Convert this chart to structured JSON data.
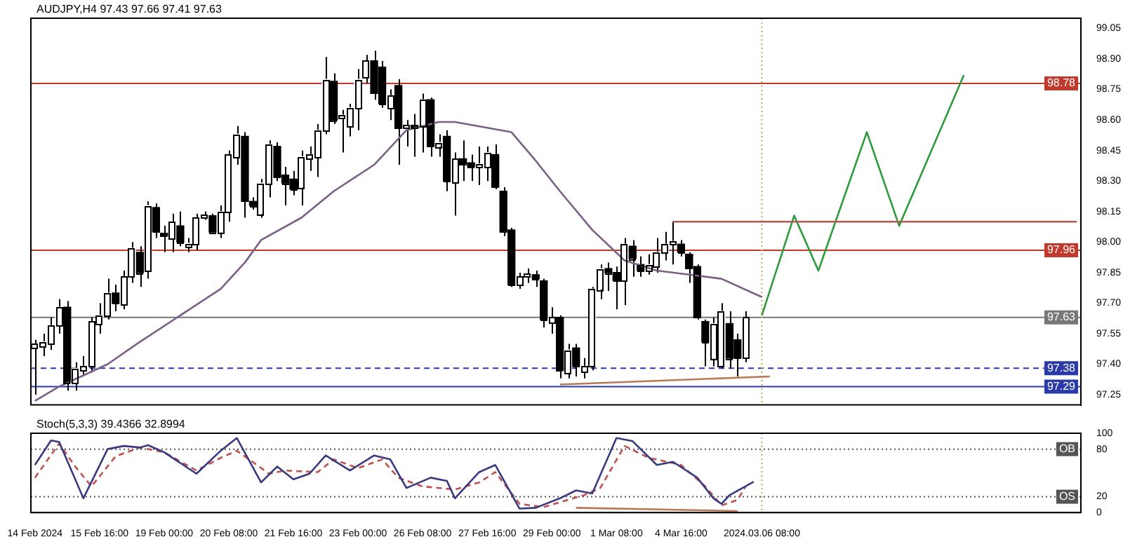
{
  "chart_data": [
    {
      "type": "candlestick",
      "title": "AUDJPY,H4 97.43 97.66 97.41 97.63",
      "color": "#000000",
      "colors": [
        "#ffffff",
        "#ffffff",
        "#ffffff",
        "#ffffff",
        "#000000",
        "#ffffff",
        "#ffffff",
        "#ffffff",
        "#ffffff",
        "#ffffff",
        "#000000",
        "#ffffff",
        "#ffffff",
        "#000000",
        "#ffffff",
        "#000000",
        "#000000",
        "#ffffff",
        "#000000",
        "#ffffff",
        "#ffffff",
        "#ffffff",
        "#000000",
        "#ffffff",
        "#ffffff",
        "#ffffff",
        "#000000",
        "#000000",
        "#ffffff",
        "#ffffff",
        "#000000",
        "#000000",
        "#000000",
        "#ffffff",
        "#ffffff",
        "#ffffff",
        "#ffffff",
        "#000000",
        "#ffffff",
        "#ffffff",
        "#ffffff",
        "#ffffff",
        "#000000",
        "#000000",
        "#ffffff",
        "#000000",
        "#ffffff",
        "#000000",
        "#ffffff",
        "#000000",
        "#ffffff",
        "#000000",
        "#ffffff",
        "#000000",
        "#000000",
        "#ffffff",
        "#ffffff",
        "#000000",
        "#000000",
        "#000000",
        "#ffffff",
        "#ffffff",
        "#000000",
        "#000000",
        "#ffffff",
        "#000000",
        "#ffffff",
        "#000000",
        "#ffffff",
        "#ffffff",
        "#ffffff",
        "#000000",
        "#000000",
        "#ffffff",
        "#000000",
        "#000000",
        "#ffffff",
        "#ffffff",
        "#ffffff",
        "#ffffff",
        "#000000",
        "#000000",
        "#000000",
        "#000000",
        "#ffffff",
        "#ffffff",
        "#000000",
        "#000000",
        "#ffffff",
        null,
        null,
        null,
        null,
        null,
        null,
        null,
        null,
        null,
        null,
        null,
        null,
        null,
        null,
        null,
        null,
        null,
        null,
        null,
        null,
        null,
        null,
        null,
        null,
        null,
        null,
        null,
        null,
        null,
        null,
        null,
        null,
        null,
        null,
        null,
        null,
        null,
        null,
        null,
        null,
        null
      ],
      "categories": [
        "14 Feb 2024",
        null,
        null,
        null,
        null,
        null,
        null,
        null,
        "15 Feb 16:00",
        null,
        null,
        null,
        null,
        null,
        null,
        null,
        "19 Feb 00:00",
        null,
        null,
        null,
        null,
        null,
        null,
        null,
        "20 Feb 08:00",
        null,
        null,
        null,
        null,
        null,
        null,
        null,
        "21 Feb 16:00",
        null,
        null,
        null,
        null,
        null,
        null,
        null,
        "23 Feb 00:00",
        null,
        null,
        null,
        null,
        null,
        null,
        null,
        "26 Feb 08:00",
        null,
        null,
        null,
        null,
        null,
        null,
        null,
        "27 Feb 16:00",
        null,
        null,
        null,
        null,
        null,
        null,
        null,
        "29 Feb 00:00",
        null,
        null,
        null,
        null,
        null,
        null,
        null,
        "1 Mar 08:00",
        null,
        null,
        null,
        null,
        null,
        null,
        null,
        "4 Mar 16:00",
        null,
        null,
        null,
        null,
        null,
        null,
        null,
        null,
        null,
        "2024.03.06 08:00",
        null,
        null,
        null,
        null,
        null,
        null,
        null,
        null,
        null,
        null,
        null,
        null,
        null,
        null,
        null,
        null,
        null,
        null,
        null,
        null,
        null,
        null,
        null,
        null,
        null,
        null,
        null,
        null,
        null,
        null,
        null,
        null,
        null,
        null,
        null,
        null,
        null,
        null,
        null
      ],
      "ohlc": [
        [
          97.48,
          97.52,
          97.25,
          97.5
        ],
        [
          97.49,
          97.55,
          97.44,
          97.51
        ],
        [
          97.5,
          97.63,
          97.47,
          97.59
        ],
        [
          97.59,
          97.72,
          97.55,
          97.68
        ],
        [
          97.68,
          97.71,
          97.27,
          97.31
        ],
        [
          97.31,
          97.41,
          97.27,
          97.38
        ],
        [
          97.37,
          97.44,
          97.34,
          97.39
        ],
        [
          97.39,
          97.63,
          97.36,
          97.61
        ],
        [
          97.6,
          97.7,
          97.55,
          97.64
        ],
        [
          97.64,
          97.82,
          97.62,
          97.75
        ],
        [
          97.75,
          97.79,
          97.66,
          97.7
        ],
        [
          97.69,
          97.86,
          97.67,
          97.83
        ],
        [
          97.83,
          98.0,
          97.8,
          97.97
        ],
        [
          97.95,
          97.98,
          97.78,
          97.85
        ],
        [
          97.86,
          98.2,
          97.82,
          98.18
        ],
        [
          98.17,
          98.19,
          98.02,
          98.05
        ],
        [
          98.04,
          98.08,
          97.95,
          98.03
        ],
        [
          98.02,
          98.14,
          97.95,
          98.1
        ],
        [
          98.08,
          98.15,
          97.98,
          98.0
        ],
        [
          97.98,
          98.02,
          97.95,
          97.99
        ],
        [
          97.99,
          98.14,
          97.96,
          98.12
        ],
        [
          98.12,
          98.15,
          98.11,
          98.13
        ],
        [
          98.13,
          98.14,
          98.04,
          98.05
        ],
        [
          98.05,
          98.18,
          98.02,
          98.15
        ],
        [
          98.15,
          98.45,
          98.1,
          98.43
        ],
        [
          98.42,
          98.57,
          98.38,
          98.53
        ],
        [
          98.52,
          98.54,
          98.12,
          98.2
        ],
        [
          98.2,
          98.22,
          98.16,
          98.18
        ],
        [
          98.14,
          98.31,
          98.12,
          98.29
        ],
        [
          98.29,
          98.5,
          98.22,
          98.48
        ],
        [
          98.47,
          98.49,
          98.3,
          98.32
        ],
        [
          98.33,
          98.37,
          98.18,
          98.29
        ],
        [
          98.31,
          98.35,
          98.23,
          98.26
        ],
        [
          98.27,
          98.45,
          98.18,
          98.42
        ],
        [
          98.41,
          98.47,
          98.35,
          98.43
        ],
        [
          98.42,
          98.58,
          98.32,
          98.55
        ],
        [
          98.55,
          98.91,
          98.53,
          98.8
        ],
        [
          98.79,
          98.83,
          98.58,
          98.6
        ],
        [
          98.61,
          98.65,
          98.44,
          98.62
        ],
        [
          98.57,
          98.68,
          98.52,
          98.66
        ],
        [
          98.66,
          98.85,
          98.55,
          98.8
        ],
        [
          98.81,
          98.92,
          98.78,
          98.89
        ],
        [
          98.89,
          98.94,
          98.7,
          98.73
        ],
        [
          98.86,
          98.89,
          98.66,
          98.68
        ],
        [
          98.66,
          98.75,
          98.6,
          98.72
        ],
        [
          98.77,
          98.8,
          98.38,
          98.56
        ],
        [
          98.56,
          98.6,
          98.47,
          98.57
        ],
        [
          98.57,
          98.63,
          98.42,
          98.56
        ],
        [
          98.57,
          98.73,
          98.44,
          98.7
        ],
        [
          98.7,
          98.71,
          98.42,
          98.47
        ],
        [
          98.47,
          98.53,
          98.42,
          98.49
        ],
        [
          98.52,
          98.55,
          98.25,
          98.3
        ],
        [
          98.29,
          98.44,
          98.13,
          98.41
        ],
        [
          98.41,
          98.5,
          98.3,
          98.38
        ],
        [
          98.39,
          98.43,
          98.3,
          98.37
        ],
        [
          98.37,
          98.47,
          98.28,
          98.38
        ],
        [
          98.37,
          98.47,
          98.3,
          98.44
        ],
        [
          98.43,
          98.48,
          98.26,
          98.27
        ],
        [
          98.25,
          98.27,
          98.03,
          98.05
        ],
        [
          98.06,
          98.07,
          97.78,
          97.79
        ],
        [
          97.79,
          97.85,
          97.77,
          97.83
        ],
        [
          97.83,
          97.87,
          97.8,
          97.84
        ],
        [
          97.84,
          97.86,
          97.78,
          97.82
        ],
        [
          97.81,
          97.82,
          97.58,
          97.62
        ],
        [
          97.6,
          97.68,
          97.55,
          97.63
        ],
        [
          97.63,
          97.64,
          97.33,
          97.37
        ],
        [
          97.36,
          97.5,
          97.33,
          97.47
        ],
        [
          97.48,
          97.5,
          97.34,
          97.39
        ],
        [
          97.36,
          97.43,
          97.33,
          97.39
        ],
        [
          97.39,
          97.78,
          97.37,
          97.77
        ],
        [
          97.77,
          97.89,
          97.72,
          97.87
        ],
        [
          97.87,
          97.9,
          97.76,
          97.85
        ],
        [
          97.85,
          97.88,
          97.67,
          97.81
        ],
        [
          97.81,
          98.02,
          97.69,
          97.99
        ],
        [
          97.98,
          98.01,
          97.83,
          97.92
        ],
        [
          97.89,
          97.93,
          97.83,
          97.86
        ],
        [
          97.86,
          97.94,
          97.84,
          97.89
        ],
        [
          97.88,
          98.02,
          97.85,
          97.95
        ],
        [
          97.95,
          98.05,
          97.91,
          97.99
        ],
        [
          97.99,
          98.1,
          97.89,
          98.0
        ],
        [
          97.99,
          98.01,
          97.93,
          97.95
        ],
        [
          97.94,
          97.95,
          97.8,
          97.87
        ],
        [
          97.88,
          97.89,
          97.62,
          97.63
        ],
        [
          97.61,
          97.62,
          97.39,
          97.51
        ],
        [
          97.43,
          97.63,
          97.39,
          97.6
        ],
        [
          97.39,
          97.7,
          97.38,
          97.66
        ],
        [
          97.6,
          97.66,
          97.38,
          97.43
        ],
        [
          97.52,
          97.55,
          97.34,
          97.43
        ],
        [
          97.43,
          97.66,
          97.41,
          97.63
        ],
        null,
        null,
        null,
        null,
        null,
        null,
        null,
        null,
        null,
        null,
        null,
        null,
        null,
        null,
        null,
        null,
        null,
        null,
        null,
        null,
        null,
        null,
        null,
        null,
        null,
        null,
        null,
        null,
        null,
        null,
        null,
        null,
        null,
        null,
        null,
        null,
        null,
        null,
        null,
        null,
        null
      ],
      "series": [
        {
          "type": "line",
          "color": "#7b5f86",
          "values": [
            97.22,
            null,
            null,
            97.29,
            null,
            null,
            null,
            null,
            null,
            97.4,
            null,
            null,
            null,
            97.51,
            null,
            null,
            null,
            null,
            97.64,
            null,
            null,
            null,
            null,
            97.77,
            null,
            null,
            97.9,
            null,
            98.01,
            null,
            null,
            null,
            null,
            98.12,
            null,
            null,
            null,
            98.25,
            null,
            null,
            null,
            null,
            98.38,
            null,
            null,
            null,
            98.55,
            null,
            null,
            null,
            98.59,
            null,
            98.59,
            null,
            null,
            null,
            null,
            null,
            null,
            98.54,
            null,
            null,
            98.4,
            null,
            null,
            98.25,
            null,
            null,
            null,
            98.06,
            null,
            null,
            null,
            97.91,
            null,
            null,
            null,
            97.86,
            null,
            null,
            null,
            97.84,
            null,
            null,
            null,
            97.82,
            null,
            null,
            null,
            null,
            97.73,
            null,
            null,
            null,
            null,
            null,
            null,
            null,
            null,
            null,
            null,
            null,
            null,
            null,
            null,
            null,
            null,
            null,
            null,
            null,
            null,
            null,
            null,
            null,
            null,
            null,
            null,
            null,
            null,
            null,
            null,
            null,
            null,
            null,
            null,
            null,
            null,
            null,
            null,
            null
          ]
        },
        {
          "type": "line",
          "color": "#b5584f",
          "values": [
            null,
            null,
            null,
            null,
            null,
            null,
            null,
            null,
            null,
            null,
            null,
            null,
            null,
            null,
            null,
            null,
            null,
            null,
            null,
            null,
            null,
            null,
            null,
            null,
            null,
            null,
            null,
            null,
            null,
            null,
            null,
            null,
            null,
            null,
            null,
            null,
            null,
            null,
            null,
            null,
            null,
            null,
            null,
            null,
            null,
            null,
            null,
            null,
            null,
            null,
            null,
            null,
            null,
            null,
            null,
            null,
            null,
            null,
            null,
            null,
            null,
            null,
            null,
            null,
            null,
            null,
            null,
            null,
            null,
            null,
            null,
            null,
            null,
            null,
            null,
            null,
            null,
            null,
            null,
            98.1,
            null,
            null,
            null,
            null,
            null,
            null,
            null,
            null,
            null,
            null,
            null,
            null,
            null,
            null,
            null,
            null,
            null,
            null,
            null,
            null,
            null,
            null,
            null,
            null,
            null,
            null,
            null,
            null,
            null,
            null,
            null,
            null,
            null,
            null,
            null,
            null,
            null,
            null,
            null,
            null,
            null,
            null,
            null,
            null,
            null,
            null,
            null,
            null,
            null,
            98.1
          ]
        },
        {
          "type": "line",
          "color": "#b87a56",
          "values": [
            null,
            null,
            null,
            null,
            null,
            null,
            null,
            null,
            null,
            null,
            null,
            null,
            null,
            null,
            null,
            null,
            null,
            null,
            null,
            null,
            null,
            null,
            null,
            null,
            null,
            null,
            null,
            null,
            null,
            null,
            null,
            null,
            null,
            null,
            null,
            null,
            null,
            null,
            null,
            null,
            null,
            null,
            null,
            null,
            null,
            null,
            null,
            null,
            null,
            null,
            null,
            null,
            null,
            null,
            null,
            null,
            null,
            null,
            null,
            null,
            null,
            null,
            null,
            null,
            null,
            97.3,
            null,
            null,
            null,
            null,
            null,
            null,
            null,
            null,
            null,
            null,
            null,
            null,
            null,
            null,
            null,
            null,
            null,
            null,
            null,
            null,
            null,
            null,
            null,
            null,
            null,
            97.34,
            null,
            null,
            null,
            null,
            null,
            null,
            null,
            null,
            null,
            null,
            null,
            null,
            null,
            null,
            null,
            null,
            null,
            null,
            null,
            null,
            null,
            null,
            null,
            null,
            null,
            null,
            null,
            null,
            null,
            null,
            null,
            null,
            null,
            null,
            null,
            null,
            null,
            null
          ]
        },
        {
          "type": "line",
          "color": "#2e9a3e",
          "values": [
            null,
            null,
            null,
            null,
            null,
            null,
            null,
            null,
            null,
            null,
            null,
            null,
            null,
            null,
            null,
            null,
            null,
            null,
            null,
            null,
            null,
            null,
            null,
            null,
            null,
            null,
            null,
            null,
            null,
            null,
            null,
            null,
            null,
            null,
            null,
            null,
            null,
            null,
            null,
            null,
            null,
            null,
            null,
            null,
            null,
            null,
            null,
            null,
            null,
            null,
            null,
            null,
            null,
            null,
            null,
            null,
            null,
            null,
            null,
            null,
            null,
            null,
            null,
            null,
            null,
            null,
            null,
            null,
            null,
            null,
            null,
            null,
            null,
            null,
            null,
            null,
            null,
            null,
            null,
            null,
            null,
            null,
            null,
            null,
            null,
            null,
            null,
            null,
            null,
            null,
            97.64,
            null,
            null,
            null,
            98.13,
            null,
            null,
            97.86,
            null,
            null,
            null,
            null,
            null,
            98.54,
            null,
            null,
            null,
            98.08,
            null,
            null,
            null,
            null,
            null,
            null,
            null,
            98.82,
            null,
            null,
            null,
            null,
            null,
            null,
            null,
            null,
            null,
            null,
            null,
            null,
            null,
            null
          ]
        }
      ],
      "ylim": [
        97.2,
        99.1
      ],
      "yticks": [
        97.25,
        {
          "value": 97.4,
          "label": "97.40"
        },
        97.55,
        {
          "value": 97.7,
          "label": "97.70"
        },
        97.85,
        {
          "value": 98,
          "label": "98.00"
        },
        98.15,
        {
          "value": 98.3,
          "label": "98.30"
        },
        98.45,
        {
          "value": 98.6,
          "label": "98.60"
        },
        98.75,
        {
          "value": 98.9,
          "label": "98.90"
        },
        99.05
      ],
      "tick_labels": "y",
      "ref_lines": [
        {
          "axis": "y",
          "value": 98.78,
          "label": "98.78",
          "color": "#c0392b"
        },
        {
          "axis": "y",
          "value": 97.96,
          "label": "97.96",
          "color": "#c0392b"
        },
        {
          "axis": "y",
          "value": 97.63,
          "label": "97.63",
          "color": "#777777"
        },
        {
          "axis": "y",
          "value": 97.38,
          "label": "97.38",
          "color": "#2a3aa8",
          "line_style": "dashed"
        },
        {
          "axis": "y",
          "value": 97.29,
          "label": "97.29",
          "color": "#2a3aa8"
        },
        {
          "axis": "x",
          "value": "2024.03.06 08:00",
          "color": "#c8a850",
          "line_style": "dotted"
        }
      ]
    },
    {
      "type": "line",
      "title": "Stoch(5,3,3) 39.4366 32.8994",
      "categories": [
        "14 Feb 2024",
        null,
        null,
        null,
        null,
        null,
        null,
        null,
        "15 Feb 16:00",
        null,
        null,
        null,
        null,
        null,
        null,
        null,
        "19 Feb 00:00",
        null,
        null,
        null,
        null,
        null,
        null,
        null,
        "20 Feb 08:00",
        null,
        null,
        null,
        null,
        null,
        null,
        null,
        "21 Feb 16:00",
        null,
        null,
        null,
        null,
        null,
        null,
        null,
        "23 Feb 00:00",
        null,
        null,
        null,
        null,
        null,
        null,
        null,
        "26 Feb 08:00",
        null,
        null,
        null,
        null,
        null,
        null,
        null,
        "27 Feb 16:00",
        null,
        null,
        null,
        null,
        null,
        null,
        null,
        "29 Feb 00:00",
        null,
        null,
        null,
        null,
        null,
        null,
        null,
        "1 Mar 08:00",
        null,
        null,
        null,
        null,
        null,
        null,
        null,
        "4 Mar 16:00",
        null,
        null,
        null,
        null,
        null,
        null,
        null,
        null,
        null,
        "2024.03.06 08:00",
        null,
        null,
        null,
        null,
        null,
        null,
        null,
        null,
        null,
        null,
        null,
        null,
        null,
        null,
        null,
        null,
        null,
        null,
        null,
        null,
        null,
        null,
        null,
        null,
        null,
        null,
        null,
        null,
        null,
        null,
        null,
        null,
        null,
        null,
        null,
        null,
        null,
        null,
        null
      ],
      "series": [
        {
          "color": "#3a3a80",
          "values": [
            60,
            null,
            91,
            89,
            null,
            null,
            18,
            null,
            null,
            80,
            null,
            84,
            null,
            82,
            85,
            null,
            76,
            null,
            null,
            null,
            49,
            null,
            null,
            78,
            null,
            94,
            null,
            null,
            38,
            null,
            58,
            null,
            42,
            null,
            49,
            null,
            72,
            null,
            null,
            53,
            null,
            null,
            72,
            null,
            67,
            null,
            31,
            null,
            null,
            44,
            null,
            40,
            18,
            null,
            null,
            51,
            null,
            60,
            null,
            null,
            5,
            null,
            6,
            null,
            null,
            18,
            null,
            28,
            null,
            24,
            null,
            null,
            94,
            null,
            90,
            null,
            null,
            60,
            null,
            64,
            null,
            null,
            44,
            null,
            18,
            11,
            22,
            null,
            null,
            39,
            null,
            null,
            null,
            null,
            null,
            null,
            null,
            null,
            null,
            null,
            null,
            null,
            null,
            null,
            null,
            null,
            null,
            null,
            null,
            null,
            null,
            null,
            null,
            null,
            null,
            null,
            null,
            null,
            null,
            null,
            null,
            null,
            null,
            null,
            null,
            null,
            null,
            null,
            null,
            null
          ]
        },
        {
          "color": "#c0504d",
          "line_style": "dashed",
          "values": [
            44,
            null,
            null,
            87,
            null,
            58,
            null,
            33,
            null,
            null,
            71,
            null,
            null,
            82,
            null,
            null,
            76,
            null,
            null,
            null,
            53,
            null,
            null,
            69,
            null,
            78,
            null,
            null,
            null,
            49,
            null,
            53,
            null,
            null,
            null,
            51,
            null,
            67,
            null,
            null,
            56,
            null,
            null,
            67,
            null,
            44,
            null,
            null,
            33,
            null,
            null,
            null,
            29,
            null,
            null,
            38,
            null,
            51,
            null,
            null,
            11,
            null,
            null,
            7,
            null,
            null,
            16,
            null,
            22,
            null,
            31,
            null,
            null,
            84,
            null,
            null,
            69,
            null,
            null,
            null,
            60,
            null,
            null,
            33,
            null,
            9,
            null,
            16,
            33,
            null,
            null,
            null,
            null,
            null,
            null,
            null,
            null,
            null,
            null,
            null,
            null,
            null,
            null,
            null,
            null,
            null,
            null,
            null,
            null,
            null,
            null,
            null,
            null,
            null,
            null,
            null,
            null,
            null,
            null,
            null,
            null,
            null,
            null,
            null,
            null,
            null,
            null,
            null,
            null,
            null
          ]
        },
        {
          "color": "#b87a56",
          "values": [
            null,
            null,
            null,
            null,
            null,
            null,
            null,
            null,
            null,
            null,
            null,
            null,
            null,
            null,
            null,
            null,
            null,
            null,
            null,
            null,
            null,
            null,
            null,
            null,
            null,
            null,
            null,
            null,
            null,
            null,
            null,
            null,
            null,
            null,
            null,
            null,
            null,
            null,
            null,
            null,
            null,
            null,
            null,
            null,
            null,
            null,
            null,
            null,
            null,
            null,
            null,
            null,
            null,
            null,
            null,
            null,
            null,
            null,
            null,
            null,
            null,
            null,
            null,
            null,
            null,
            null,
            null,
            6,
            null,
            null,
            null,
            null,
            null,
            null,
            null,
            null,
            null,
            null,
            null,
            null,
            null,
            null,
            null,
            null,
            null,
            null,
            null,
            2,
            null,
            null,
            null,
            null,
            null,
            null,
            null,
            null,
            null,
            null,
            null,
            null,
            null,
            null,
            null,
            null,
            null,
            null,
            null,
            null,
            null,
            null,
            null,
            null,
            null,
            null,
            null,
            null,
            null,
            null,
            null,
            null,
            null,
            null,
            null,
            null,
            null,
            null,
            null,
            null,
            null,
            null
          ]
        }
      ],
      "ylim": [
        0,
        100
      ],
      "yticks": [
        0,
        20,
        80,
        100
      ],
      "ref_lines": [
        {
          "axis": "y",
          "value": 80,
          "label": "OB",
          "color": "#555555",
          "line_style": "dotted"
        },
        {
          "axis": "y",
          "value": 20,
          "label": "OS",
          "color": "#555555",
          "line_style": "dotted"
        },
        {
          "axis": "x",
          "value": "2024.03.06 08:00",
          "color": "#c8a850",
          "line_style": "dotted"
        }
      ]
    }
  ]
}
